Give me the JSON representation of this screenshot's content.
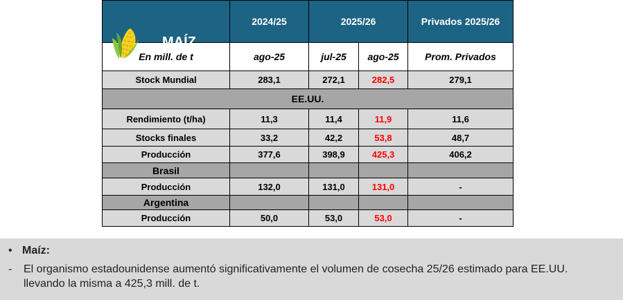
{
  "table": {
    "title": "MAÍZ",
    "header": {
      "col1": "2024/25",
      "col2": "2025/26",
      "col3": "Privados 2025/26"
    },
    "subheader": {
      "unit": "En mill. de t",
      "c1": "ago-25",
      "c2": "jul-25",
      "c3": "ago-25",
      "c4": "Prom. Privados"
    },
    "rows": [
      {
        "label": "Stock Mundial",
        "v1": "283,1",
        "v2": "272,1",
        "v3": "282,5",
        "v4": "279,1"
      },
      {
        "section": "EE.UU."
      },
      {
        "label": "Rendimiento (t/ha)",
        "v1": "11,3",
        "v2": "11,4",
        "v3": "11,9",
        "v4": "11,6"
      },
      {
        "label": "Stocks finales",
        "v1": "33,2",
        "v2": "42,2",
        "v3": "53,8",
        "v4": "48,7"
      },
      {
        "label": "Producción",
        "v1": "377,6",
        "v2": "398,9",
        "v3": "425,3",
        "v4": "406,2"
      },
      {
        "section": "Brasil"
      },
      {
        "label": "Producción",
        "v1": "132,0",
        "v2": "131,0",
        "v3": "131,0",
        "v4": "-"
      },
      {
        "section": "Argentina"
      },
      {
        "label": "Producción",
        "v1": "50,0",
        "v2": "53,0",
        "v3": "53,0",
        "v4": "-"
      }
    ]
  },
  "notes": {
    "bullet_symbol": "•",
    "heading": "Maíz:",
    "dash_symbol": "-",
    "text": "El organismo estadounidense aumentó significativamente el volumen de cosecha 25/26 estimado para EE.UU. llevando la misma a 425,3 mill. de t."
  },
  "colors": {
    "header_bg": "#1d6383",
    "row_grey": "#d9d9d9",
    "section_grey": "#a6a6a6",
    "highlight_red": "#ff0000"
  },
  "icons": {
    "title_icon": "corn-icon"
  }
}
